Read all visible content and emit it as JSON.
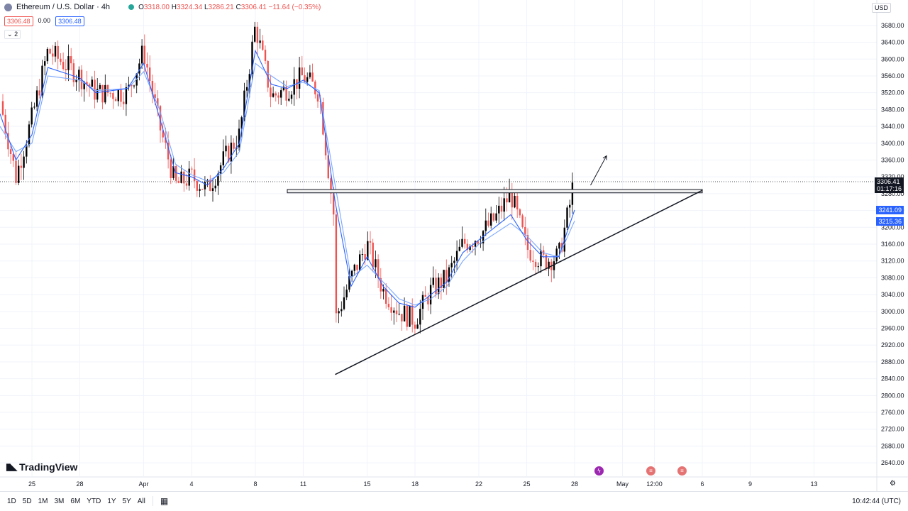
{
  "header": {
    "symbol": "Ethereum / U.S. Dollar · 4h",
    "ohlc_open_label": "O",
    "ohlc_open": "3318.00",
    "ohlc_high_label": "H",
    "ohlc_high": "3324.34",
    "ohlc_low_label": "L",
    "ohlc_low": "3286.21",
    "ohlc_close_label": "C",
    "ohlc_close": "3306.41",
    "ohlc_change": "−11.64 (−0.35%)",
    "sell_price": "3306.48",
    "spread": "0.00",
    "buy_price": "3306.48",
    "indicator_count": "2"
  },
  "currency": "USD",
  "price_tags": {
    "last_price": "3306.41",
    "countdown": "01:17:16",
    "ma1": "3241.09",
    "ma2": "3215.36"
  },
  "brand": "TradingView",
  "toolbar": {
    "timeframes": [
      "1D",
      "5D",
      "1M",
      "3M",
      "6M",
      "YTD",
      "1Y",
      "5Y",
      "All"
    ],
    "clock": "10:42:44 (UTC)"
  },
  "colors": {
    "up": "#000000",
    "down": "#ef5350",
    "ma1": "#2962ff",
    "ma2": "#7aa7ff",
    "grid": "#f0f3fa"
  },
  "chart_data": {
    "type": "candlestick",
    "title": "Ethereum / U.S. Dollar",
    "interval": "4h",
    "yaxis": {
      "ylim": [
        2620,
        3700
      ],
      "ticks": [
        3680,
        3640,
        3600,
        3560,
        3520,
        3480,
        3440,
        3400,
        3360,
        3320,
        3280,
        3240,
        3200,
        3160,
        3120,
        3080,
        3040,
        3000,
        2960,
        2920,
        2880,
        2840,
        2800,
        2760,
        2720,
        2680,
        2640
      ]
    },
    "xaxis": {
      "tick_labels": [
        "25",
        "28",
        "Apr",
        "4",
        "8",
        "11",
        "15",
        "18",
        "22",
        "25",
        "28",
        "May",
        "12:00",
        "6",
        "9",
        "13"
      ]
    },
    "grid": true,
    "path": [
      {
        "x": "2024-03-23",
        "y": 3500
      },
      {
        "x": "2024-03-24",
        "y": 3320
      },
      {
        "x": "2024-03-25",
        "y": 3460
      },
      {
        "x": "2024-03-26",
        "y": 3620
      },
      {
        "x": "2024-03-28",
        "y": 3560
      },
      {
        "x": "2024-03-29",
        "y": 3520
      },
      {
        "x": "2024-03-31",
        "y": 3520
      },
      {
        "x": "2024-04-01",
        "y": 3620
      },
      {
        "x": "2024-04-02",
        "y": 3440
      },
      {
        "x": "2024-04-03",
        "y": 3300
      },
      {
        "x": "2024-04-04",
        "y": 3320
      },
      {
        "x": "2024-04-05",
        "y": 3290
      },
      {
        "x": "2024-04-06",
        "y": 3360
      },
      {
        "x": "2024-04-07",
        "y": 3420
      },
      {
        "x": "2024-04-08",
        "y": 3680
      },
      {
        "x": "2024-04-09",
        "y": 3510
      },
      {
        "x": "2024-04-10",
        "y": 3530
      },
      {
        "x": "2024-04-11",
        "y": 3560
      },
      {
        "x": "2024-04-12",
        "y": 3520
      },
      {
        "x": "2024-04-13",
        "y": 3200
      },
      {
        "x": "2024-04-13",
        "y": 2980
      },
      {
        "x": "2024-04-14",
        "y": 3080
      },
      {
        "x": "2024-04-15",
        "y": 3160
      },
      {
        "x": "2024-04-16",
        "y": 3050
      },
      {
        "x": "2024-04-17",
        "y": 3000
      },
      {
        "x": "2024-04-18",
        "y": 2980
      },
      {
        "x": "2024-04-19",
        "y": 3050
      },
      {
        "x": "2024-04-20",
        "y": 3080
      },
      {
        "x": "2024-04-21",
        "y": 3160
      },
      {
        "x": "2024-04-22",
        "y": 3180
      },
      {
        "x": "2024-04-23",
        "y": 3220
      },
      {
        "x": "2024-04-24",
        "y": 3280
      },
      {
        "x": "2024-04-25",
        "y": 3150
      },
      {
        "x": "2024-04-26",
        "y": 3120
      },
      {
        "x": "2024-04-27",
        "y": 3130
      },
      {
        "x": "2024-04-28",
        "y": 3306
      }
    ],
    "ma_fast": [
      {
        "x": "2024-03-23",
        "y": 3470
      },
      {
        "x": "2024-03-24",
        "y": 3360
      },
      {
        "x": "2024-03-25",
        "y": 3420
      },
      {
        "x": "2024-03-26",
        "y": 3580
      },
      {
        "x": "2024-03-28",
        "y": 3555
      },
      {
        "x": "2024-03-29",
        "y": 3520
      },
      {
        "x": "2024-03-31",
        "y": 3530
      },
      {
        "x": "2024-04-01",
        "y": 3590
      },
      {
        "x": "2024-04-02",
        "y": 3460
      },
      {
        "x": "2024-04-03",
        "y": 3330
      },
      {
        "x": "2024-04-04",
        "y": 3320
      },
      {
        "x": "2024-04-05",
        "y": 3300
      },
      {
        "x": "2024-04-06",
        "y": 3340
      },
      {
        "x": "2024-04-07",
        "y": 3400
      },
      {
        "x": "2024-04-08",
        "y": 3620
      },
      {
        "x": "2024-04-09",
        "y": 3540
      },
      {
        "x": "2024-04-10",
        "y": 3530
      },
      {
        "x": "2024-04-11",
        "y": 3550
      },
      {
        "x": "2024-04-12",
        "y": 3520
      },
      {
        "x": "2024-04-13",
        "y": 3260
      },
      {
        "x": "2024-04-14",
        "y": 3060
      },
      {
        "x": "2024-04-15",
        "y": 3130
      },
      {
        "x": "2024-04-16",
        "y": 3060
      },
      {
        "x": "2024-04-17",
        "y": 3020
      },
      {
        "x": "2024-04-18",
        "y": 3010
      },
      {
        "x": "2024-04-19",
        "y": 3040
      },
      {
        "x": "2024-04-20",
        "y": 3070
      },
      {
        "x": "2024-04-21",
        "y": 3140
      },
      {
        "x": "2024-04-22",
        "y": 3170
      },
      {
        "x": "2024-04-23",
        "y": 3200
      },
      {
        "x": "2024-04-24",
        "y": 3230
      },
      {
        "x": "2024-04-25",
        "y": 3170
      },
      {
        "x": "2024-04-26",
        "y": 3130
      },
      {
        "x": "2024-04-27",
        "y": 3130
      },
      {
        "x": "2024-04-28",
        "y": 3241.09
      }
    ],
    "ma_slow": [
      {
        "x": "2024-03-23",
        "y": 3440
      },
      {
        "x": "2024-03-24",
        "y": 3380
      },
      {
        "x": "2024-03-25",
        "y": 3400
      },
      {
        "x": "2024-03-26",
        "y": 3560
      },
      {
        "x": "2024-03-28",
        "y": 3550
      },
      {
        "x": "2024-03-29",
        "y": 3525
      },
      {
        "x": "2024-03-31",
        "y": 3530
      },
      {
        "x": "2024-04-01",
        "y": 3570
      },
      {
        "x": "2024-04-02",
        "y": 3480
      },
      {
        "x": "2024-04-03",
        "y": 3350
      },
      {
        "x": "2024-04-04",
        "y": 3325
      },
      {
        "x": "2024-04-05",
        "y": 3310
      },
      {
        "x": "2024-04-06",
        "y": 3330
      },
      {
        "x": "2024-04-07",
        "y": 3380
      },
      {
        "x": "2024-04-08",
        "y": 3590
      },
      {
        "x": "2024-04-09",
        "y": 3560
      },
      {
        "x": "2024-04-10",
        "y": 3535
      },
      {
        "x": "2024-04-11",
        "y": 3545
      },
      {
        "x": "2024-04-12",
        "y": 3525
      },
      {
        "x": "2024-04-13",
        "y": 3300
      },
      {
        "x": "2024-04-14",
        "y": 3080
      },
      {
        "x": "2024-04-15",
        "y": 3110
      },
      {
        "x": "2024-04-16",
        "y": 3070
      },
      {
        "x": "2024-04-17",
        "y": 3030
      },
      {
        "x": "2024-04-18",
        "y": 3015
      },
      {
        "x": "2024-04-19",
        "y": 3030
      },
      {
        "x": "2024-04-20",
        "y": 3060
      },
      {
        "x": "2024-04-21",
        "y": 3120
      },
      {
        "x": "2024-04-22",
        "y": 3160
      },
      {
        "x": "2024-04-23",
        "y": 3185
      },
      {
        "x": "2024-04-24",
        "y": 3210
      },
      {
        "x": "2024-04-25",
        "y": 3180
      },
      {
        "x": "2024-04-26",
        "y": 3140
      },
      {
        "x": "2024-04-27",
        "y": 3130
      },
      {
        "x": "2024-04-28",
        "y": 3215.36
      }
    ],
    "last_price": 3306.41,
    "resistance_zone": {
      "from": "2024-04-10",
      "to": "2024-05-06",
      "low": 3282,
      "high": 3290
    },
    "support_trendline": [
      {
        "x": "2024-04-13",
        "y": 2850
      },
      {
        "x": "2024-05-06",
        "y": 3288
      }
    ],
    "arrow": [
      {
        "x": "2024-04-29",
        "y": 3300
      },
      {
        "x": "2024-04-30",
        "y": 3370
      }
    ]
  }
}
